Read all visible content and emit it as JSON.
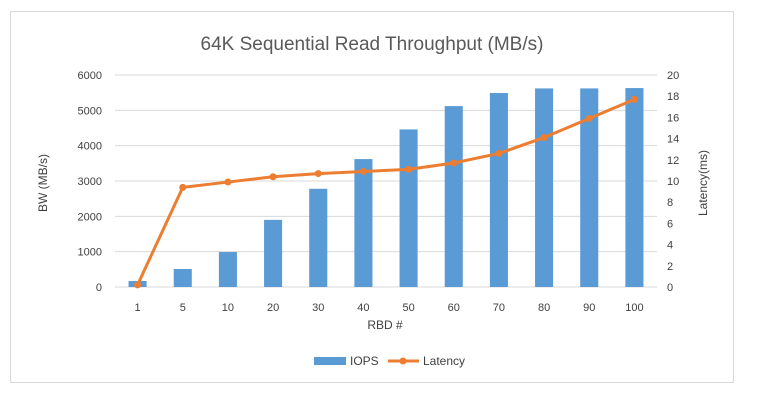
{
  "chart_data": {
    "type": "bar",
    "title": "64K Sequential Read Throughput (MB/s)",
    "xlabel": "RBD #",
    "ylabel": "BW (MB/s)",
    "y2label": "Latency(ms)",
    "categories": [
      "1",
      "5",
      "10",
      "20",
      "30",
      "40",
      "50",
      "60",
      "70",
      "80",
      "90",
      "100"
    ],
    "ylim": [
      0,
      6000
    ],
    "yticks": [
      0,
      1000,
      2000,
      3000,
      4000,
      5000,
      6000
    ],
    "y2lim": [
      0,
      20
    ],
    "y2ticks": [
      0,
      2,
      4,
      6,
      8,
      10,
      12,
      14,
      16,
      18,
      20
    ],
    "grid": true,
    "legend_position": "bottom",
    "series": [
      {
        "name": "IOPS",
        "kind": "bar",
        "axis": "left",
        "color": "#5b9bd5",
        "values": [
          170,
          510,
          990,
          1900,
          2780,
          3620,
          4460,
          5120,
          5490,
          5620,
          5620,
          5630
        ]
      },
      {
        "name": "Latency",
        "kind": "line",
        "axis": "right",
        "color": "#ed7d31",
        "values": [
          0.2,
          9.4,
          9.9,
          10.4,
          10.7,
          10.9,
          11.1,
          11.7,
          12.6,
          14.1,
          15.9,
          17.7
        ]
      }
    ]
  }
}
